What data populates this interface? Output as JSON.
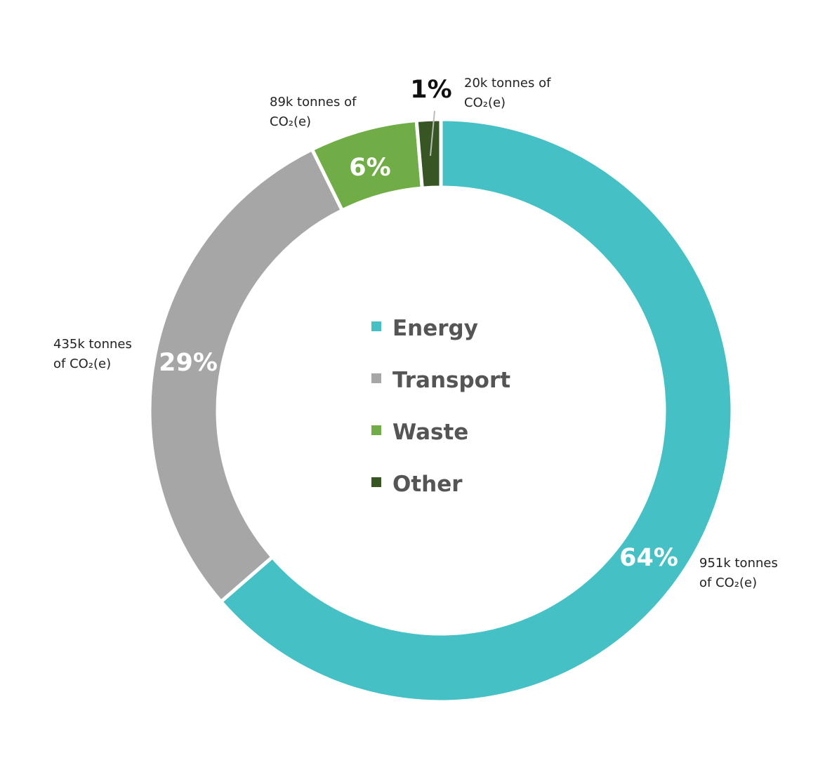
{
  "chart_data": {
    "type": "pie",
    "donut": true,
    "categories": [
      "Energy",
      "Transport",
      "Waste",
      "Other"
    ],
    "values": [
      951,
      435,
      89,
      20
    ],
    "unit": "k tonnes of CO2(e)",
    "percent_labels": [
      "64%",
      "29%",
      "6%",
      "1%"
    ],
    "annotations": [
      {
        "line1": "951k tonnes",
        "line2": "of CO₂(e)"
      },
      {
        "line1": "435k tonnes",
        "line2": "of CO₂(e)"
      },
      {
        "line1": "89k tonnes of",
        "line2": "CO₂(e)"
      },
      {
        "line1": "20k tonnes of",
        "line2": "CO₂(e)"
      }
    ],
    "colors": [
      "#45c1c5",
      "#a6a6a6",
      "#70ad47",
      "#375623"
    ],
    "legend": {
      "position": "center",
      "entries": [
        "Energy",
        "Transport",
        "Waste",
        "Other"
      ]
    }
  }
}
